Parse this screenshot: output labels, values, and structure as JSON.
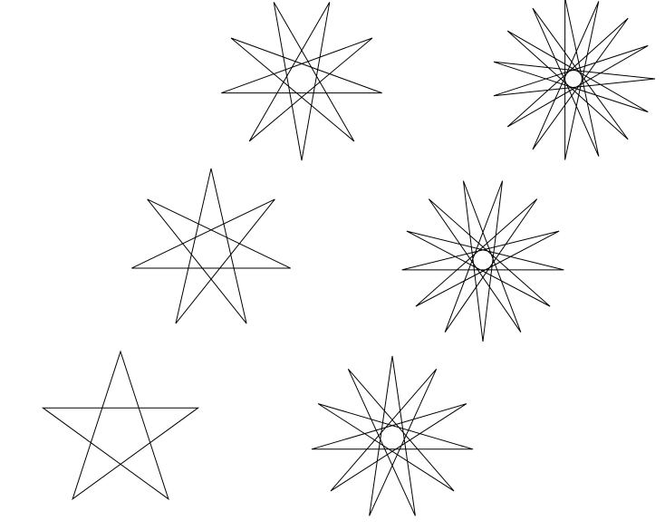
{
  "colors": {
    "background": "#ffffff",
    "stroke": "#000000"
  },
  "figures": [
    {
      "name": "star-polygon-5-2",
      "points": 5,
      "step": 2,
      "rotation_deg": -90
    },
    {
      "name": "star-polygon-7-3",
      "points": 7,
      "step": 3,
      "rotation_deg": -90
    },
    {
      "name": "star-polygon-9-4",
      "points": 9,
      "step": 4,
      "rotation_deg": 90
    },
    {
      "name": "star-polygon-11-5",
      "points": 11,
      "step": 5,
      "rotation_deg": -90
    },
    {
      "name": "star-polygon-13-6",
      "points": 13,
      "step": 6,
      "rotation_deg": 90
    },
    {
      "name": "star-polygon-15-7",
      "points": 15,
      "step": 7,
      "rotation_deg": 0
    }
  ]
}
